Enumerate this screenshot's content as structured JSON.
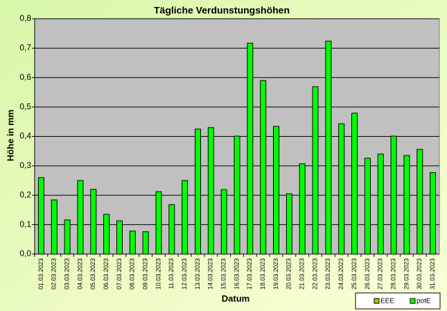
{
  "chart_data": {
    "type": "bar",
    "title": "Tägliche Verdunstungshöhen",
    "x_label": "Datum",
    "y_label": "Höhe in mm",
    "categories": [
      "01.03.2023",
      "02.03.2023",
      "03.03.2023",
      "04.03.2023",
      "05.03.2023",
      "06.03.2023",
      "07.03.2023",
      "08.03.2023",
      "09.03.2023",
      "10.03.2023",
      "11.03.2023",
      "12.03.2023",
      "13.03.2023",
      "14.03.2023",
      "15.03.2023",
      "16.03.2023",
      "17.03.2023",
      "18.03.2023",
      "19.03.2023",
      "20.03.2023",
      "21.03.2023",
      "22.03.2023",
      "23.03.2023",
      "24.03.2023",
      "25.03.2023",
      "26.03.2023",
      "27.03.2023",
      "28.03.2023",
      "29.03.2023",
      "30.03.2023",
      "31.03.2023"
    ],
    "series": [
      {
        "name": "EEE",
        "color": "#99cc00",
        "values": [
          null,
          null,
          null,
          null,
          null,
          null,
          null,
          null,
          null,
          null,
          null,
          null,
          null,
          null,
          null,
          null,
          null,
          null,
          null,
          null,
          null,
          null,
          null,
          null,
          null,
          null,
          null,
          null,
          null,
          null,
          null
        ]
      },
      {
        "name": "potE",
        "color": "#00ff00",
        "values": [
          0.26,
          0.184,
          0.116,
          0.25,
          0.22,
          0.135,
          0.113,
          0.078,
          0.076,
          0.212,
          0.168,
          0.25,
          0.425,
          0.43,
          0.219,
          0.401,
          0.717,
          0.59,
          0.434,
          0.205,
          0.307,
          0.569,
          0.724,
          0.443,
          0.479,
          0.326,
          0.34,
          0.401,
          0.335,
          0.356,
          0.277
        ]
      }
    ],
    "ylim": [
      0,
      0.8
    ],
    "yticks": [
      {
        "value": 0,
        "label": "0,0"
      },
      {
        "value": 0.1,
        "label": "0,1"
      },
      {
        "value": 0.2,
        "label": "0,2"
      },
      {
        "value": 0.3,
        "label": "0,3"
      },
      {
        "value": 0.4,
        "label": "0,4"
      },
      {
        "value": 0.5,
        "label": "0,5"
      },
      {
        "value": 0.6,
        "label": "0,6"
      },
      {
        "value": 0.7,
        "label": "0,7"
      },
      {
        "value": 0.8,
        "label": "0,8"
      }
    ],
    "grid": true
  }
}
